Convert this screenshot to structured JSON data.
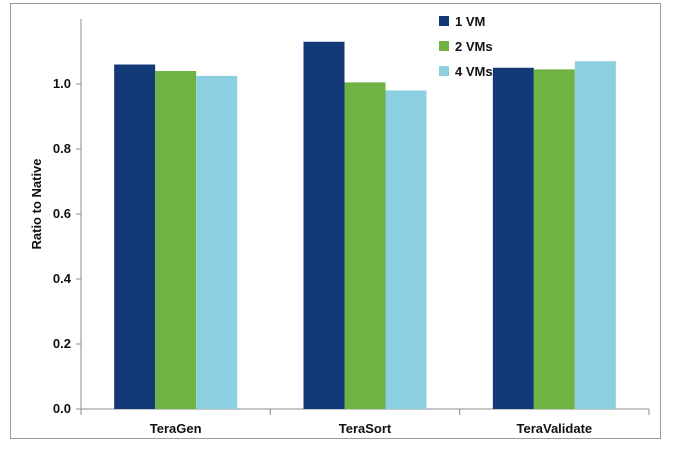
{
  "chart_data": {
    "type": "bar",
    "categories": [
      "TeraGen",
      "TeraSort",
      "TeraValidate"
    ],
    "series": [
      {
        "name": "1 VM",
        "color": "#133a77",
        "values": [
          1.06,
          1.13,
          1.05
        ]
      },
      {
        "name": "2 VMs",
        "color": "#70b244",
        "values": [
          1.04,
          1.005,
          1.045
        ]
      },
      {
        "name": "4 VMs",
        "color": "#8ccfe0",
        "values": [
          1.025,
          0.98,
          1.07
        ]
      }
    ],
    "title": "",
    "xlabel": "",
    "ylabel": "Ratio to Native",
    "ylim": [
      0,
      1.2
    ],
    "yticks": [
      0.0,
      0.2,
      0.4,
      0.6,
      0.8,
      1.0
    ],
    "ytick_labels": [
      "0.0",
      "0.2",
      "0.4",
      "0.6",
      "0.8",
      "1.0"
    ],
    "grid": false,
    "legend": "top-center",
    "axis_color": "#8c8c8c"
  }
}
